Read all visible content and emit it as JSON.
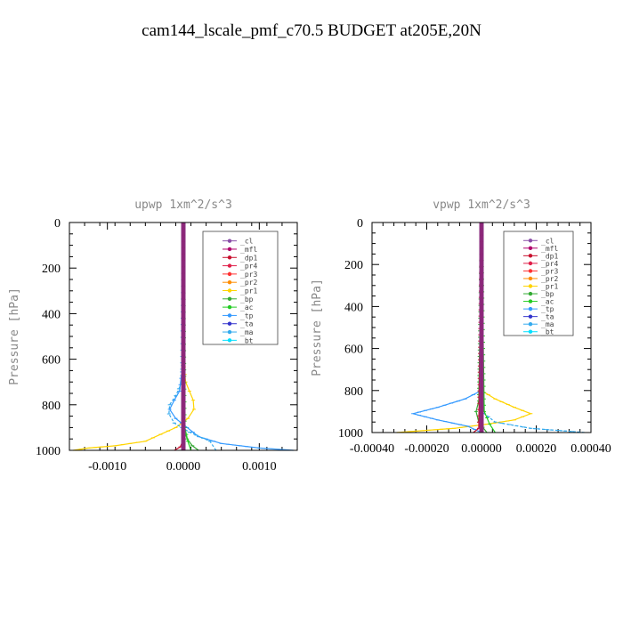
{
  "figure": {
    "title": "cam144_lscale_pmf_c70.5  BUDGET at205E,20N"
  },
  "legend_entries": [
    {
      "label": "_cl",
      "color": "#8a4fa8",
      "marker": "diamond"
    },
    {
      "label": "_mfl",
      "color": "#b0006a",
      "marker": "tri-right"
    },
    {
      "label": "_dp1",
      "color": "#c8102e",
      "marker": "diamond"
    },
    {
      "label": "_pr4",
      "color": "#e0204a",
      "marker": "tri-up"
    },
    {
      "label": "_pr3",
      "color": "#ff3030",
      "marker": "tri-down"
    },
    {
      "label": "_pr2",
      "color": "#ff8c00",
      "marker": "tri-up"
    },
    {
      "label": "_pr1",
      "color": "#ffd400",
      "marker": "square"
    },
    {
      "label": "_bp",
      "color": "#33aa33",
      "marker": "x"
    },
    {
      "label": "_ac",
      "color": "#22cc22",
      "marker": "circle"
    },
    {
      "label": "_tp",
      "color": "#3399ff",
      "marker": "star"
    },
    {
      "label": "_ta",
      "color": "#3333cc",
      "marker": "tri-right"
    },
    {
      "label": "_ma",
      "color": "#33aaee",
      "marker": "dash"
    },
    {
      "label": "_bt",
      "color": "#00e0ff",
      "marker": "diamond"
    }
  ],
  "chart_data": [
    {
      "type": "line",
      "title": "upwp   1xm^2/s^3",
      "xlabel": "",
      "ylabel": "Pressure [hPa]",
      "xlim": [
        -0.0015,
        0.0015
      ],
      "ylim": [
        1000,
        0
      ],
      "xticks": [
        -0.001,
        0.0,
        0.001
      ],
      "xtick_labels": [
        "-0.0010",
        "0.0000",
        "0.0010"
      ],
      "yticks": [
        0,
        200,
        400,
        600,
        800,
        1000
      ],
      "ytick_labels": [
        "0",
        "200",
        "400",
        "600",
        "800",
        "1000"
      ],
      "series": [
        {
          "name": "_pr1",
          "color": "#ffd400",
          "y": [
            0,
            200,
            600,
            700,
            740,
            780,
            820,
            860,
            900,
            930,
            960,
            980,
            990,
            1000
          ],
          "x": [
            0,
            0,
            0,
            3e-05,
            8e-05,
            0.00013,
            0.00014,
            6e-05,
            -0.0001,
            -0.0003,
            -0.0005,
            -0.0009,
            -0.00125,
            -0.00145
          ]
        },
        {
          "name": "_tp",
          "color": "#3399ff",
          "y": [
            0,
            600,
            740,
            780,
            820,
            860,
            900,
            940,
            970,
            990,
            1000
          ],
          "x": [
            0,
            0,
            -5e-05,
            -0.00012,
            -0.00018,
            -0.0001,
            5e-05,
            0.0002,
            0.0005,
            0.001,
            0.00145
          ]
        },
        {
          "name": "_ma",
          "color": "#33aaee",
          "y": [
            0,
            700,
            760,
            800,
            840,
            880,
            920,
            960,
            1000
          ],
          "x": [
            0,
            -2e-05,
            -0.0001,
            -0.00018,
            -0.00019,
            -0.00012,
            8e-05,
            0.00035,
            0.00043
          ]
        },
        {
          "name": "_bp",
          "color": "#33aa33",
          "y": [
            0,
            900,
            950,
            980,
            1000
          ],
          "x": [
            0,
            0,
            5e-05,
            0.00012,
            0.0002
          ]
        },
        {
          "name": "_ac",
          "color": "#22cc22",
          "y": [
            0,
            900,
            960,
            1000
          ],
          "x": [
            0,
            2e-05,
            6e-05,
            0.0001
          ]
        },
        {
          "name": "_dp1",
          "color": "#c8102e",
          "y": [
            0,
            950,
            985,
            1000
          ],
          "x": [
            0,
            0,
            -4e-05,
            -0.00012
          ]
        },
        {
          "name": "_cl",
          "color": "#8a4fa8",
          "y": [
            0,
            1000
          ],
          "x": [
            0,
            0
          ]
        },
        {
          "name": "_mfl",
          "color": "#b0006a",
          "y": [
            0,
            1000
          ],
          "x": [
            0,
            0
          ]
        }
      ]
    },
    {
      "type": "line",
      "title": "vpwp   1xm^2/s^3",
      "xlabel": "",
      "ylabel": "Pressure [hPa]",
      "xlim": [
        -0.0004,
        0.0004
      ],
      "ylim": [
        1000,
        0
      ],
      "xticks": [
        -0.0004,
        -0.0002,
        0.0,
        0.0002,
        0.0004
      ],
      "xtick_labels": [
        "-0.00040",
        "-0.00020",
        "0.00000",
        "0.00020",
        "0.00040"
      ],
      "yticks": [
        0,
        200,
        400,
        600,
        800,
        1000
      ],
      "ytick_labels": [
        "0",
        "200",
        "400",
        "600",
        "800",
        "1000"
      ],
      "series": [
        {
          "name": "_pr1",
          "color": "#ffd400",
          "y": [
            0,
            800,
            840,
            880,
            910,
            940,
            960,
            980,
            1000
          ],
          "x": [
            0,
            0,
            5e-05,
            0.00012,
            0.00018,
            0.00012,
            2e-05,
            -0.0001,
            -0.00031
          ]
        },
        {
          "name": "_tp",
          "color": "#3399ff",
          "y": [
            0,
            800,
            840,
            880,
            910,
            940,
            970,
            1000
          ],
          "x": [
            0,
            0,
            -6e-05,
            -0.00016,
            -0.00025,
            -0.00016,
            -5e-05,
            0.0
          ]
        },
        {
          "name": "_ma",
          "color": "#33aaee",
          "y": [
            0,
            900,
            950,
            980,
            1000
          ],
          "x": [
            0,
            0,
            5e-05,
            0.00018,
            0.00038
          ]
        },
        {
          "name": "_bp",
          "color": "#33aa33",
          "y": [
            0,
            850,
            900,
            950,
            1000
          ],
          "x": [
            0,
            -1e-05,
            -2e-05,
            -1e-05,
            2e-05
          ]
        },
        {
          "name": "_ac",
          "color": "#22cc22",
          "y": [
            0,
            900,
            960,
            1000
          ],
          "x": [
            0,
            1e-05,
            3e-05,
            5e-05
          ]
        },
        {
          "name": "_dp1",
          "color": "#c8102e",
          "y": [
            0,
            980,
            1000
          ],
          "x": [
            0,
            -1e-05,
            -3e-05
          ]
        },
        {
          "name": "_cl",
          "color": "#8a4fa8",
          "y": [
            0,
            1000
          ],
          "x": [
            0,
            0
          ]
        },
        {
          "name": "_mfl",
          "color": "#b0006a",
          "y": [
            0,
            1000
          ],
          "x": [
            0,
            0
          ]
        }
      ]
    }
  ]
}
